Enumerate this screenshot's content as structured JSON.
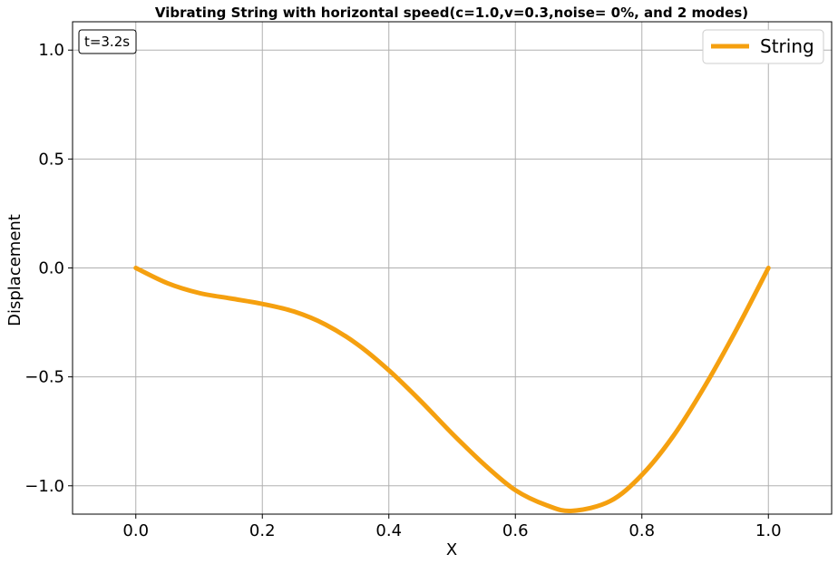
{
  "chart_data": {
    "type": "line",
    "title": "Vibrating String with horizontal speed(c=1.0,v=0.3,noise= 0%, and 2 modes)",
    "xlabel": "X",
    "ylabel": "Displacement",
    "xlim": [
      -0.1,
      1.1
    ],
    "ylim": [
      -1.13,
      1.13
    ],
    "xticks": [
      0.0,
      0.2,
      0.4,
      0.6,
      0.8,
      1.0
    ],
    "yticks": [
      -1.0,
      -0.5,
      0.0,
      0.5,
      1.0
    ],
    "xtick_labels": [
      "0.0",
      "0.2",
      "0.4",
      "0.6",
      "0.8",
      "1.0"
    ],
    "ytick_labels": [
      "−1.0",
      "−0.5",
      "0.0",
      "0.5",
      "1.0"
    ],
    "grid": true,
    "legend_position": "top-right",
    "annotation": "t=3.2s",
    "series": [
      {
        "name": "String",
        "color": "#f5a00f",
        "x": [
          0.0,
          0.05,
          0.1,
          0.15,
          0.2,
          0.25,
          0.3,
          0.35,
          0.4,
          0.45,
          0.5,
          0.55,
          0.6,
          0.65,
          0.69,
          0.75,
          0.8,
          0.85,
          0.9,
          0.95,
          1.0
        ],
        "y": [
          0.0,
          -0.07,
          -0.115,
          -0.14,
          -0.165,
          -0.2,
          -0.26,
          -0.35,
          -0.47,
          -0.61,
          -0.76,
          -0.9,
          -1.02,
          -1.09,
          -1.115,
          -1.07,
          -0.95,
          -0.77,
          -0.54,
          -0.28,
          0.0
        ]
      }
    ]
  }
}
